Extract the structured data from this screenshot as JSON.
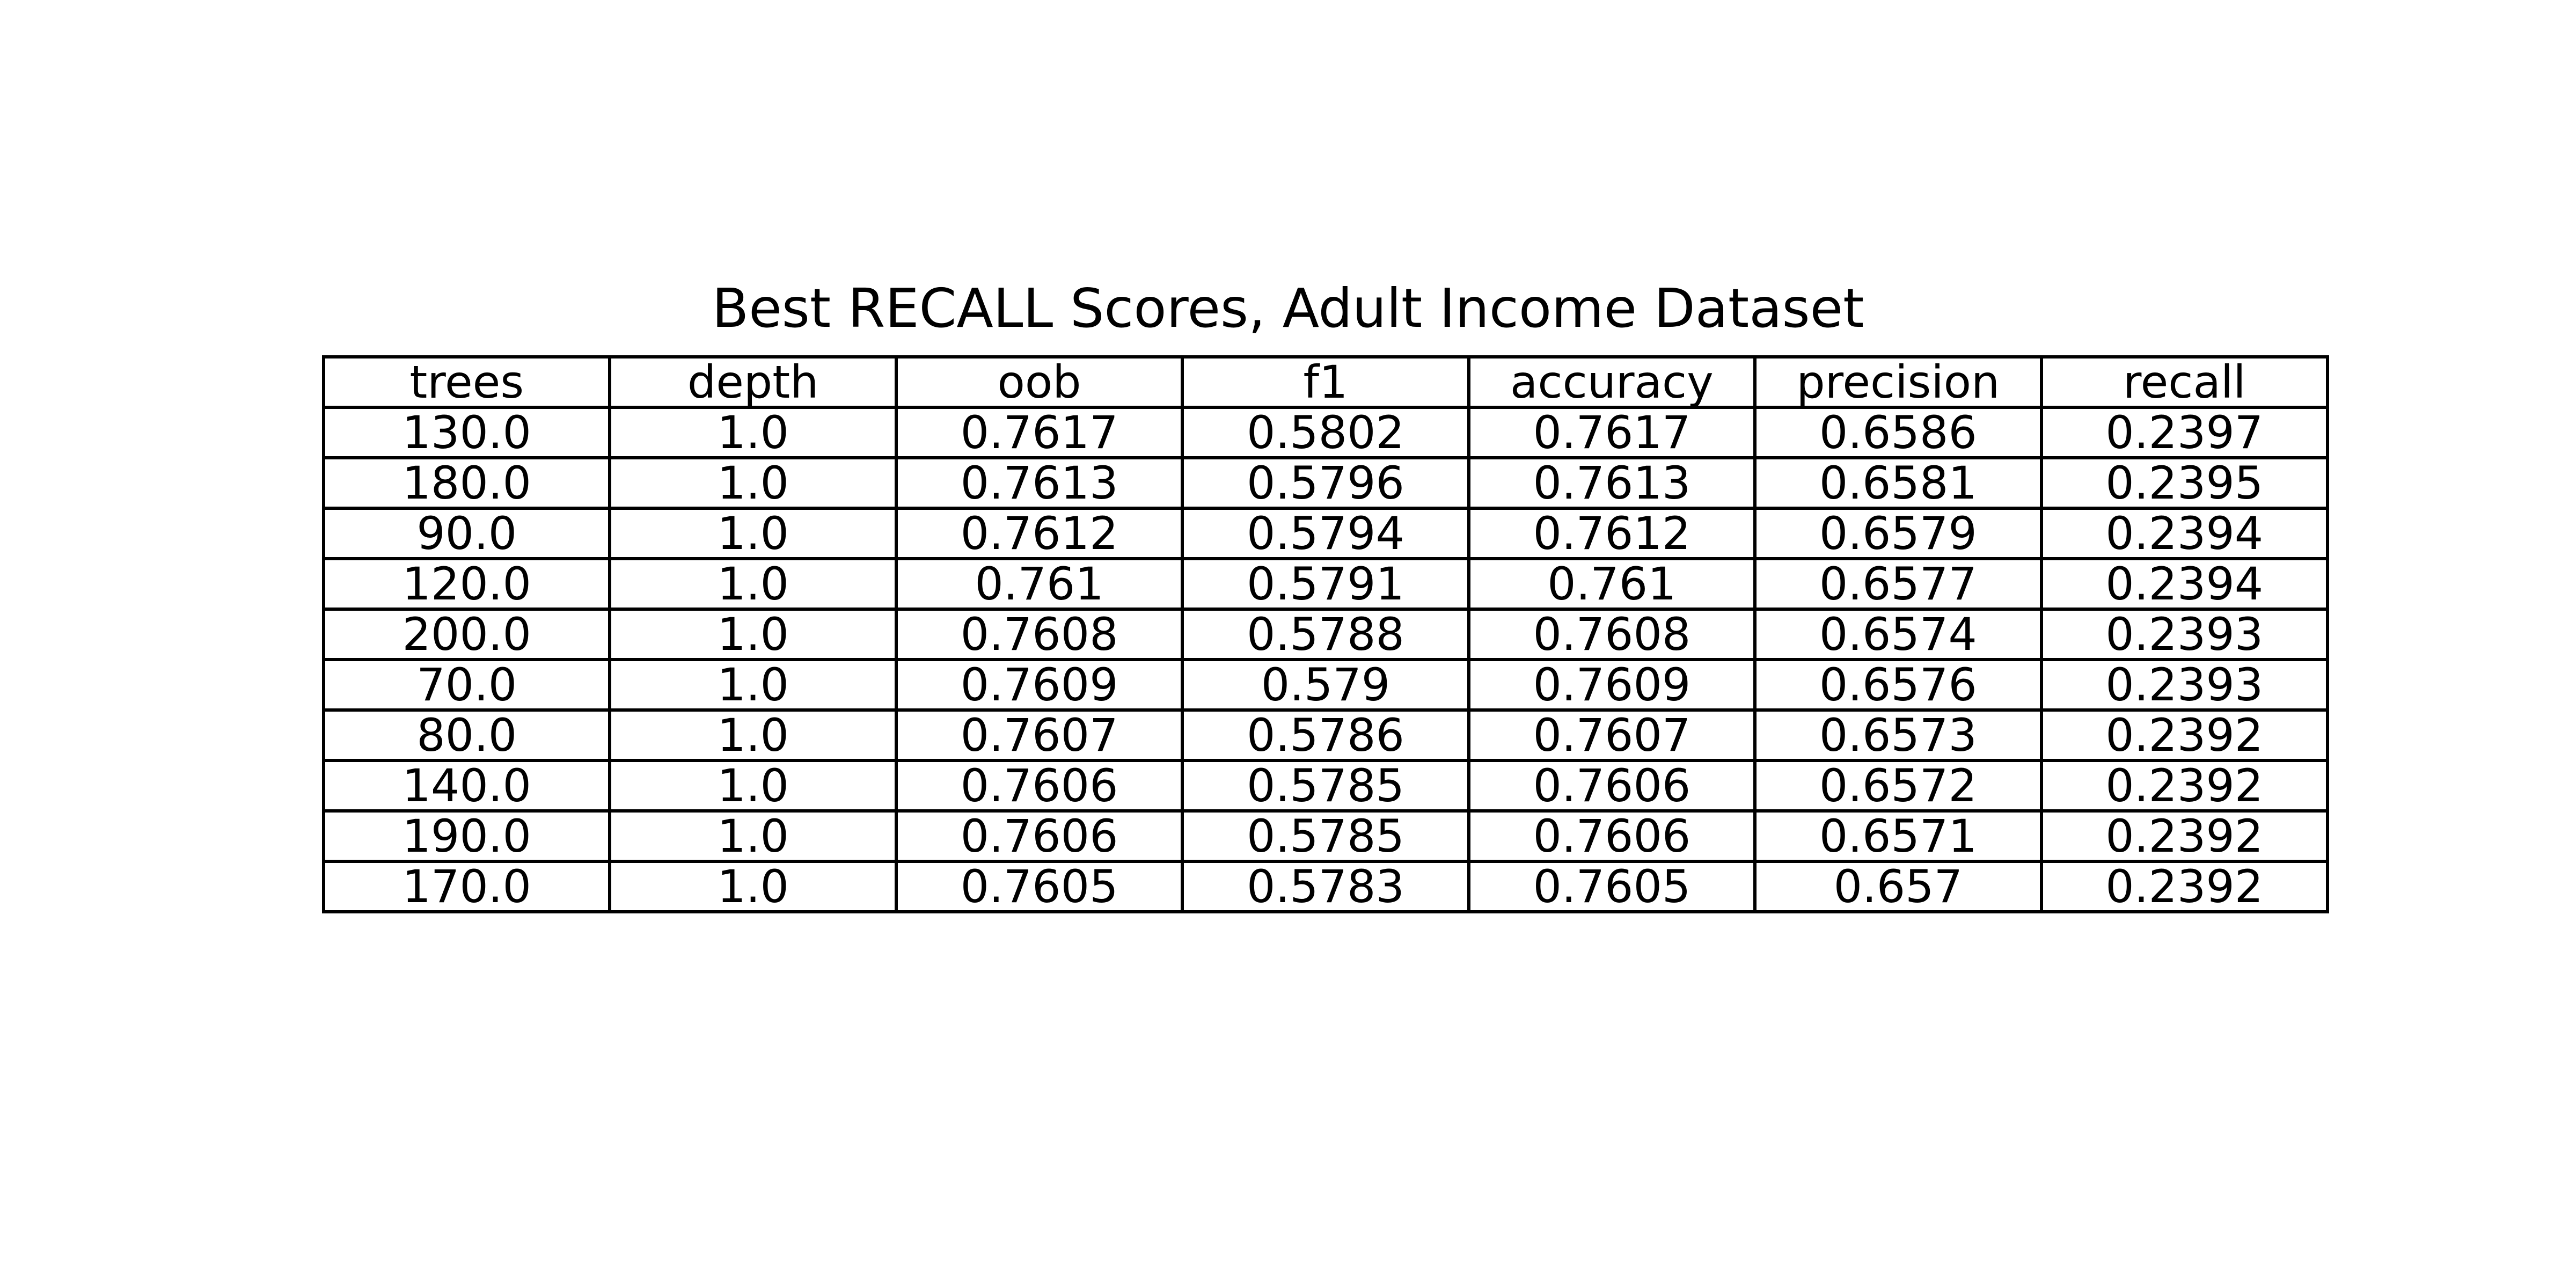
{
  "chart_data": {
    "type": "table",
    "title": "Best RECALL Scores, Adult Income Dataset",
    "columns": [
      "trees",
      "depth",
      "oob",
      "f1",
      "accuracy",
      "precision",
      "recall"
    ],
    "rows": [
      [
        "130.0",
        "1.0",
        "0.7617",
        "0.5802",
        "0.7617",
        "0.6586",
        "0.2397"
      ],
      [
        "180.0",
        "1.0",
        "0.7613",
        "0.5796",
        "0.7613",
        "0.6581",
        "0.2395"
      ],
      [
        "90.0",
        "1.0",
        "0.7612",
        "0.5794",
        "0.7612",
        "0.6579",
        "0.2394"
      ],
      [
        "120.0",
        "1.0",
        "0.761",
        "0.5791",
        "0.761",
        "0.6577",
        "0.2394"
      ],
      [
        "200.0",
        "1.0",
        "0.7608",
        "0.5788",
        "0.7608",
        "0.6574",
        "0.2393"
      ],
      [
        "70.0",
        "1.0",
        "0.7609",
        "0.579",
        "0.7609",
        "0.6576",
        "0.2393"
      ],
      [
        "80.0",
        "1.0",
        "0.7607",
        "0.5786",
        "0.7607",
        "0.6573",
        "0.2392"
      ],
      [
        "140.0",
        "1.0",
        "0.7606",
        "0.5785",
        "0.7606",
        "0.6572",
        "0.2392"
      ],
      [
        "190.0",
        "1.0",
        "0.7606",
        "0.5785",
        "0.7606",
        "0.6571",
        "0.2392"
      ],
      [
        "170.0",
        "1.0",
        "0.7605",
        "0.5783",
        "0.7605",
        "0.657",
        "0.2392"
      ]
    ]
  }
}
